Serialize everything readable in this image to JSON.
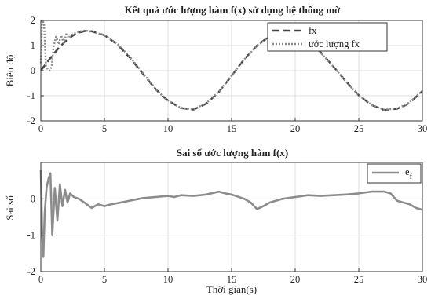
{
  "chart_data": [
    {
      "type": "line",
      "title": "Kết quả ước lượng hàm f(x) sử dụng hệ thống mờ",
      "xlabel": "",
      "ylabel": "Biên độ",
      "xlim": [
        0,
        30
      ],
      "ylim": [
        -2,
        2
      ],
      "xticks": [
        "0",
        "5",
        "10",
        "15",
        "20",
        "25",
        "30"
      ],
      "yticks": [
        "2",
        "1",
        "0",
        "-1",
        "-2"
      ],
      "grid": true,
      "legend_position": "top-right",
      "series": [
        {
          "name": "fx",
          "style": "dashed",
          "color": "#444444",
          "x": [
            0,
            0.5,
            1,
            1.5,
            2,
            2.5,
            3,
            3.5,
            4,
            5,
            6,
            7,
            8,
            9,
            9.5,
            10,
            11,
            12,
            13,
            14,
            15,
            15.5,
            16,
            17,
            18,
            19,
            20,
            21,
            21.5,
            22,
            23,
            24,
            25,
            26,
            27,
            28,
            28.5,
            29,
            30
          ],
          "values": [
            0.0,
            0.34,
            0.66,
            0.96,
            1.2,
            1.39,
            1.52,
            1.58,
            1.57,
            1.41,
            1.05,
            0.52,
            -0.11,
            -0.72,
            -0.98,
            -1.19,
            -1.49,
            -1.55,
            -1.32,
            -0.85,
            -0.21,
            0.13,
            0.46,
            1.0,
            1.38,
            1.57,
            1.51,
            1.22,
            0.99,
            0.73,
            0.17,
            -0.43,
            -0.98,
            -1.37,
            -1.57,
            -1.52,
            -1.42,
            -1.28,
            -0.82
          ]
        },
        {
          "name": "ước lượng fx",
          "style": "dotted",
          "color": "#8c8c8c",
          "x": [
            0,
            0.1,
            0.25,
            0.4,
            0.55,
            0.7,
            0.85,
            1,
            1.2,
            1.4,
            1.6,
            1.8,
            2,
            2.2,
            2.5,
            3,
            3.5,
            4,
            5,
            6,
            7,
            8,
            9,
            9.5,
            10,
            11,
            12,
            13,
            14,
            15,
            15.5,
            16,
            17,
            18,
            19,
            20,
            21,
            21.5,
            22,
            23,
            24,
            25,
            26,
            27,
            28,
            28.5,
            29,
            30
          ],
          "values": [
            0.3,
            2.0,
            1.9,
            0.2,
            0.05,
            0.0,
            0.15,
            0.95,
            1.35,
            1.05,
            1.4,
            1.1,
            1.45,
            1.3,
            1.45,
            1.55,
            1.6,
            1.55,
            1.42,
            1.08,
            0.55,
            -0.08,
            -0.7,
            -0.97,
            -1.18,
            -1.48,
            -1.54,
            -1.3,
            -0.83,
            -0.2,
            0.13,
            0.45,
            0.98,
            1.36,
            1.56,
            1.5,
            1.21,
            0.98,
            0.72,
            0.16,
            -0.44,
            -0.98,
            -1.36,
            -1.56,
            -1.5,
            -1.4,
            -1.26,
            -0.8
          ]
        }
      ]
    },
    {
      "type": "line",
      "title": "Sai số ước lượng hàm f(x)",
      "xlabel": "Thời gian(s)",
      "ylabel": "Sai số",
      "xlim": [
        0,
        30
      ],
      "ylim": [
        -2,
        1
      ],
      "xticks": [
        "0",
        "5",
        "10",
        "15",
        "20",
        "25",
        "30"
      ],
      "yticks": [
        "0",
        "-1",
        "-2"
      ],
      "grid": true,
      "legend_position": "top-right",
      "series": [
        {
          "name": "e",
          "name_subscript": "f",
          "style": "solid",
          "color": "#8c8c8c",
          "x": [
            0,
            0.1,
            0.2,
            0.3,
            0.45,
            0.6,
            0.75,
            0.9,
            1.1,
            1.3,
            1.5,
            1.7,
            1.9,
            2.1,
            2.3,
            2.6,
            3,
            3.5,
            4,
            4.5,
            5,
            5.5,
            6,
            7,
            8,
            9,
            10,
            10.5,
            11,
            12,
            13,
            14,
            14.5,
            15,
            16,
            16.5,
            17,
            17.5,
            18,
            19,
            20,
            21,
            22,
            23,
            24,
            25,
            26,
            27,
            27.5,
            28,
            29,
            29.5,
            30
          ],
          "values": [
            0.8,
            -0.9,
            -1.6,
            -0.4,
            0.3,
            0.55,
            0.7,
            -1.0,
            0.3,
            -0.6,
            0.4,
            -0.2,
            0.25,
            -0.1,
            0.15,
            0.05,
            0.0,
            -0.12,
            -0.25,
            -0.15,
            -0.2,
            -0.15,
            -0.12,
            -0.05,
            0.02,
            0.05,
            0.08,
            0.05,
            0.1,
            0.08,
            0.12,
            0.2,
            0.15,
            0.12,
            0.0,
            -0.1,
            -0.28,
            -0.2,
            -0.1,
            0.0,
            0.05,
            0.1,
            0.08,
            0.1,
            0.12,
            0.15,
            0.2,
            0.2,
            0.15,
            -0.05,
            -0.15,
            -0.25,
            -0.3
          ]
        }
      ]
    }
  ]
}
